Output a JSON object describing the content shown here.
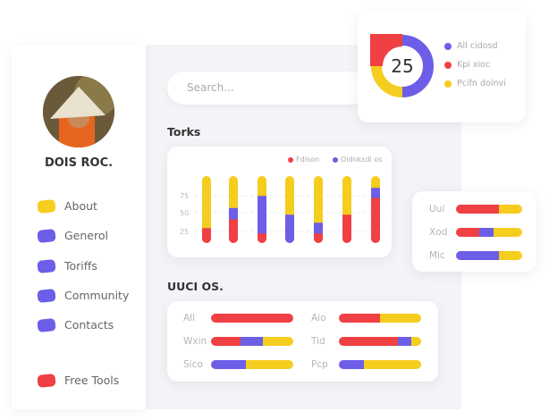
{
  "colors": {
    "red": "#ef4044",
    "yellow": "#f5cd1e",
    "purple": "#6c5ee6"
  },
  "profile": {
    "name": "DOIS ROC."
  },
  "nav": [
    {
      "label": "About",
      "color": "yellow"
    },
    {
      "label": "Generol",
      "color": "purple"
    },
    {
      "label": "Toriffs",
      "color": "purple"
    },
    {
      "label": "Community",
      "color": "purple"
    },
    {
      "label": "Contacts",
      "color": "purple"
    },
    {
      "label": "Free Tools",
      "color": "red"
    }
  ],
  "search": {
    "placeholder": "Search..."
  },
  "donut": {
    "value": "25",
    "segments": [
      {
        "label": "All cidosd",
        "color": "purple",
        "pct": 50
      },
      {
        "label": "Pcifn doinvi",
        "color": "yellow",
        "pct": 25
      },
      {
        "label": "Kpi xioc",
        "color": "red",
        "pct": 25
      }
    ],
    "legend": [
      {
        "label": "All cidosd",
        "color": "purple"
      },
      {
        "label": "Kpi xioc",
        "color": "red"
      },
      {
        "label": "Pcifn doinvi",
        "color": "yellow"
      }
    ]
  },
  "torks": {
    "title": "Torks",
    "legend": [
      {
        "label": "Fdison",
        "color": "red"
      },
      {
        "label": "Oidnksdi os",
        "color": "purple"
      }
    ],
    "ticks": [
      "75",
      "50",
      "25"
    ]
  },
  "chart_data": {
    "type": "bar",
    "stacked": true,
    "yticks": [
      25,
      50,
      75
    ],
    "grid": true,
    "legend": "top-right",
    "series": [
      {
        "name": "Fdison",
        "color": "red",
        "values": [
          23,
          36,
          15,
          0,
          15,
          43,
          68
        ]
      },
      {
        "name": "Oidnksdi os",
        "color": "purple",
        "values": [
          0,
          17,
          56,
          43,
          16,
          0,
          15
        ]
      },
      {
        "color": "yellow",
        "values": [
          77,
          47,
          29,
          57,
          69,
          57,
          17
        ]
      }
    ]
  },
  "side_bars": [
    {
      "label": "Uui",
      "parts": [
        [
          "red",
          65
        ],
        [
          "yellow",
          35
        ]
      ]
    },
    {
      "label": "Xod",
      "parts": [
        [
          "red",
          35
        ],
        [
          "purple",
          22
        ],
        [
          "yellow",
          43
        ]
      ]
    },
    {
      "label": "Mic",
      "parts": [
        [
          "purple",
          65
        ],
        [
          "yellow",
          35
        ]
      ]
    }
  ],
  "uuci": {
    "title": "UUCI OS.",
    "rows": [
      {
        "label": "All",
        "parts": [
          [
            "red",
            100
          ]
        ]
      },
      {
        "label": "Aio",
        "parts": [
          [
            "red",
            50
          ],
          [
            "yellow",
            50
          ]
        ]
      },
      {
        "label": "Wxin",
        "parts": [
          [
            "red",
            36
          ],
          [
            "purple",
            27
          ],
          [
            "yellow",
            37
          ]
        ]
      },
      {
        "label": "Tid",
        "parts": [
          [
            "red",
            72
          ],
          [
            "purple",
            16
          ],
          [
            "yellow",
            12
          ]
        ]
      },
      {
        "label": "Sico",
        "parts": [
          [
            "purple",
            42
          ],
          [
            "yellow",
            58
          ]
        ]
      },
      {
        "label": "Pcp",
        "parts": [
          [
            "purple",
            30
          ],
          [
            "yellow",
            70
          ]
        ]
      }
    ]
  }
}
